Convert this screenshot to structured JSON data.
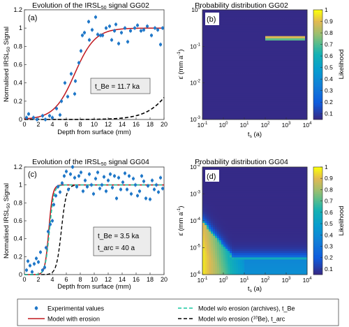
{
  "chart_data": [
    {
      "id": "a",
      "type": "scatter",
      "title": "Evolution of the IRSL",
      "title_sub": "50",
      "title_rest": " signal GG02",
      "panel_label": "(a)",
      "xlabel": "Depth from surface (mm)",
      "ylabel": "Normalised IRSL",
      "ylabel_sub": "50",
      "ylabel_rest": " Signal",
      "xlim": [
        0,
        20
      ],
      "ylim": [
        0,
        1.2
      ],
      "xticks": [
        0,
        2,
        4,
        6,
        8,
        10,
        12,
        14,
        16,
        18,
        20
      ],
      "yticks": [
        0,
        0.2,
        0.4,
        0.6,
        0.8,
        1,
        1.2
      ],
      "annotations": [
        "t_Be = 11.7 ka"
      ],
      "experimental": [
        [
          0.3,
          0.02
        ],
        [
          0.6,
          0.06
        ],
        [
          1.3,
          0.02
        ],
        [
          1.8,
          0.0
        ],
        [
          2.6,
          0.04
        ],
        [
          3.0,
          0.0
        ],
        [
          3.6,
          0.04
        ],
        [
          4.0,
          0.02
        ],
        [
          4.6,
          0.12
        ],
        [
          5.1,
          0.05
        ],
        [
          5.3,
          0.2
        ],
        [
          5.8,
          0.4
        ],
        [
          6.2,
          0.25
        ],
        [
          6.7,
          0.5
        ],
        [
          7.2,
          0.28
        ],
        [
          7.3,
          0.42
        ],
        [
          7.8,
          0.62
        ],
        [
          8.1,
          0.75
        ],
        [
          8.3,
          0.92
        ],
        [
          8.6,
          0.95
        ],
        [
          9.2,
          1.07
        ],
        [
          9.3,
          0.87
        ],
        [
          9.7,
          0.98
        ],
        [
          10.2,
          1.12
        ],
        [
          10.5,
          0.93
        ],
        [
          10.9,
          0.92
        ],
        [
          11.2,
          0.92
        ],
        [
          11.7,
          1.0
        ],
        [
          12.2,
          1.02
        ],
        [
          12.5,
          0.87
        ],
        [
          12.9,
          0.97
        ],
        [
          13.1,
          1.04
        ],
        [
          13.5,
          0.83
        ],
        [
          13.9,
          0.95
        ],
        [
          14.4,
          1.0
        ],
        [
          14.8,
          0.85
        ],
        [
          15.2,
          0.97
        ],
        [
          15.8,
          1.0
        ],
        [
          16.2,
          1.03
        ],
        [
          16.7,
          0.97
        ],
        [
          17.1,
          0.98
        ],
        [
          17.6,
          1.02
        ],
        [
          18.2,
          0.92
        ],
        [
          18.7,
          1.0
        ],
        [
          19.1,
          0.98
        ],
        [
          19.5,
          0.82
        ],
        [
          19.8,
          1.0
        ]
      ],
      "model_erosion": {
        "type": "sigmoid",
        "x0": 7.2,
        "k": 0.68
      },
      "model_no_erosion_be": {
        "type": "sigmoid",
        "x0": 22.3,
        "k": 0.5
      }
    },
    {
      "id": "b",
      "type": "heatmap",
      "title": "Probability distribution GG02",
      "panel_label": "(b)",
      "xlabel": "t",
      "xlabel_sub": "s",
      "xlabel_rest": " (a)",
      "ylabel": "ε̇ (mm a",
      "ylabel_sup": "-1",
      "ylabel_rest": ")",
      "x_scale": "log",
      "y_scale": "log",
      "xlim": [
        0.1,
        10000
      ],
      "ylim": [
        0.001,
        1
      ],
      "xticks": [
        "10",
        "10",
        "10",
        "10",
        "10",
        "10"
      ],
      "xtick_exps": [
        "-1",
        "0",
        "1",
        "2",
        "3",
        "4"
      ],
      "yticks": [
        "10",
        "10",
        "10",
        "10"
      ],
      "ytick_exps": [
        "-3",
        "-2",
        "-1",
        "0"
      ],
      "colorbar_label": "Likelihood",
      "colorbar_ticks": [
        "0.1",
        "0.2",
        "0.3",
        "0.4",
        "0.5",
        "0.6",
        "0.7",
        "0.8",
        "0.9",
        "1"
      ],
      "description_band": {
        "eps": 0.17,
        "ts_from": 100,
        "ts_to": 5000
      }
    },
    {
      "id": "c",
      "type": "scatter",
      "title": "Evolution of the IRSL",
      "title_sub": "50",
      "title_rest": " signal GG04",
      "panel_label": "(c)",
      "xlabel": "Depth from surface (mm)",
      "ylabel": "Normalised IRSL",
      "ylabel_sub": "50",
      "ylabel_rest": " Signal",
      "xlim": [
        0,
        20
      ],
      "ylim": [
        0,
        1.2
      ],
      "xticks": [
        0,
        2,
        4,
        6,
        8,
        10,
        12,
        14,
        16,
        18,
        20
      ],
      "yticks": [
        0,
        0.2,
        0.4,
        0.6,
        0.8,
        1,
        1.2
      ],
      "annotations": [
        "t_Be = 3.5 ka",
        "t_arc = 40 a"
      ],
      "experimental": [
        [
          0.3,
          0.05
        ],
        [
          0.5,
          0.15
        ],
        [
          0.8,
          0.1
        ],
        [
          1.1,
          0.03
        ],
        [
          1.4,
          0.12
        ],
        [
          1.7,
          0.18
        ],
        [
          2.0,
          0.14
        ],
        [
          2.3,
          0.25
        ],
        [
          2.6,
          0.05
        ],
        [
          2.9,
          0.08
        ],
        [
          3.1,
          0.3
        ],
        [
          3.4,
          0.48
        ],
        [
          3.7,
          0.56
        ],
        [
          4.0,
          0.6
        ],
        [
          4.2,
          0.78
        ],
        [
          4.5,
          0.88
        ],
        [
          4.8,
          0.98
        ],
        [
          5.1,
          0.92
        ],
        [
          5.4,
          1.02
        ],
        [
          5.7,
          1.1
        ],
        [
          6.0,
          1.15
        ],
        [
          6.3,
          0.95
        ],
        [
          6.6,
          1.12
        ],
        [
          6.9,
          1.2
        ],
        [
          7.2,
          1.08
        ],
        [
          7.5,
          0.98
        ],
        [
          7.8,
          1.1
        ],
        [
          8.1,
          1.14
        ],
        [
          8.4,
          0.93
        ],
        [
          8.7,
          1.05
        ],
        [
          9.0,
          0.98
        ],
        [
          9.3,
          1.12
        ],
        [
          9.6,
          1.0
        ],
        [
          9.9,
          0.9
        ],
        [
          10.2,
          1.07
        ],
        [
          10.5,
          1.14
        ],
        [
          10.8,
          0.96
        ],
        [
          11.1,
          1.0
        ],
        [
          11.4,
          1.09
        ],
        [
          11.7,
          0.93
        ],
        [
          12.0,
          1.05
        ],
        [
          12.3,
          1.12
        ],
        [
          12.6,
          0.97
        ],
        [
          12.9,
          1.1
        ],
        [
          13.2,
          0.85
        ],
        [
          13.5,
          1.08
        ],
        [
          13.8,
          0.95
        ],
        [
          14.1,
          1.03
        ],
        [
          14.4,
          1.13
        ],
        [
          14.7,
          0.95
        ],
        [
          15.0,
          1.1
        ],
        [
          15.3,
          0.9
        ],
        [
          15.6,
          1.07
        ],
        [
          15.9,
          1.0
        ],
        [
          16.2,
          0.88
        ],
        [
          16.5,
          0.93
        ],
        [
          16.8,
          1.1
        ],
        [
          17.1,
          1.04
        ],
        [
          17.4,
          0.85
        ],
        [
          17.7,
          0.99
        ],
        [
          18.0,
          0.84
        ],
        [
          18.3,
          1.05
        ],
        [
          18.6,
          0.95
        ],
        [
          18.9,
          1.0
        ],
        [
          19.2,
          0.92
        ],
        [
          19.5,
          1.08
        ],
        [
          19.8,
          0.96
        ]
      ],
      "model_erosion": {
        "type": "sigmoid",
        "x0": 3.5,
        "k": 3.6
      },
      "model_no_erosion_archives": {
        "type": "sigmoid",
        "x0": 3.6,
        "k": 3.2
      },
      "model_no_erosion_be": {
        "type": "sigmoid",
        "x0": 5.3,
        "k": 2.8
      }
    },
    {
      "id": "d",
      "type": "heatmap",
      "title": "Probability distribution GG04",
      "panel_label": "(d)",
      "xlabel": "t",
      "xlabel_sub": "s",
      "xlabel_rest": " (a)",
      "ylabel": "ε̇ (mm a",
      "ylabel_sup": "-1",
      "ylabel_rest": ")",
      "x_scale": "log",
      "y_scale": "log",
      "xlim": [
        0.1,
        10000
      ],
      "ylim": [
        1e-06,
        0.01
      ],
      "xticks": [
        "10",
        "10",
        "10",
        "10",
        "10",
        "10"
      ],
      "xtick_exps": [
        "-1",
        "0",
        "1",
        "2",
        "3",
        "4"
      ],
      "yticks": [
        "10",
        "10",
        "10",
        "10",
        "10"
      ],
      "ytick_exps": [
        "-6",
        "-5",
        "-4",
        "-3",
        "-2"
      ],
      "colorbar_label": "Likelihood",
      "colorbar_ticks": [
        "0.1",
        "0.2",
        "0.3",
        "0.4",
        "0.5",
        "0.6",
        "0.7",
        "0.8",
        "0.9",
        "1"
      ]
    }
  ],
  "legend": {
    "experimental": "Experimental values",
    "model_erosion": "Model with erosion",
    "model_archives": "Model w/o erosion (archives), t_Be",
    "model_be_prefix": "Model w/o erosion (",
    "model_be_sup": "10",
    "model_be_suffix": "Be), t_arc"
  },
  "colors": {
    "points": "#1f77c8",
    "model_erosion": "#c0181f",
    "model_archives": "#17c8a0",
    "model_be": "#000000",
    "annotation_green": "#1aa84a"
  }
}
